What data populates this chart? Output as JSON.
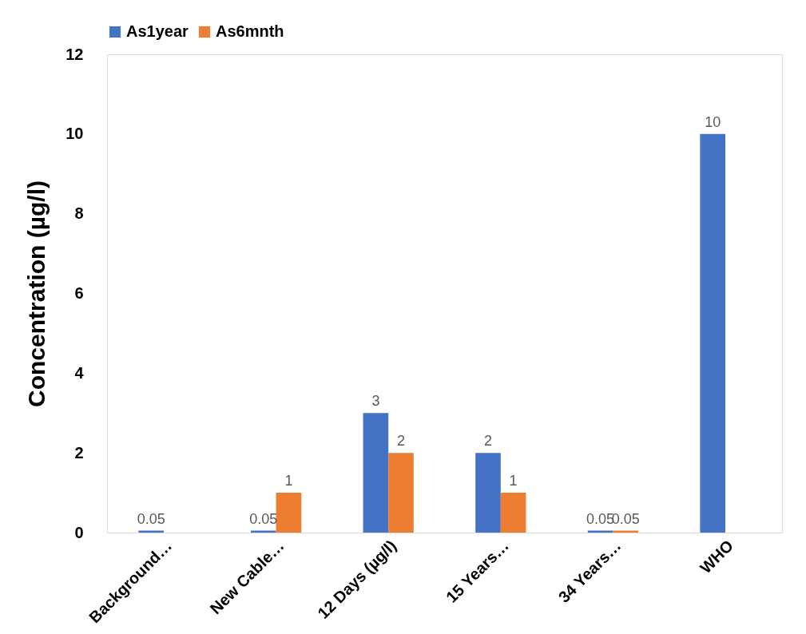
{
  "chart_data": {
    "type": "bar",
    "ylabel": "Concentration (µg/l)",
    "categories": [
      "Background…",
      "New Cable…",
      "12 Days (µg/l)",
      "15 Years…",
      "34 Years…",
      "WHO"
    ],
    "series": [
      {
        "name": "As1year",
        "color": "#4472c4",
        "values": [
          0.05,
          0.05,
          3,
          2,
          0.05,
          10
        ]
      },
      {
        "name": "As6mnth",
        "color": "#ed7d31",
        "values": [
          null,
          1,
          2,
          1,
          0.05,
          null
        ]
      }
    ],
    "ylim": [
      0,
      12
    ],
    "yticks": [
      0,
      2,
      4,
      6,
      8,
      10,
      12
    ],
    "grid": false,
    "legend": "top",
    "data_labels": true
  }
}
